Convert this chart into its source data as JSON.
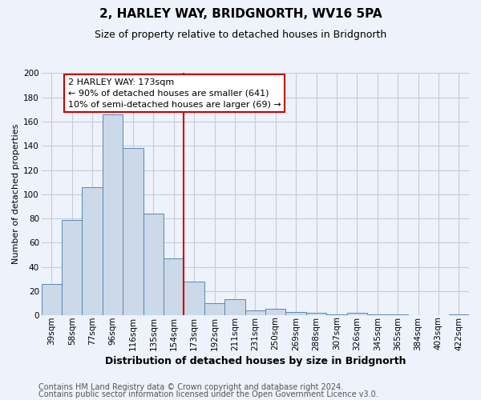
{
  "title": "2, HARLEY WAY, BRIDGNORTH, WV16 5PA",
  "subtitle": "Size of property relative to detached houses in Bridgnorth",
  "xlabel": "Distribution of detached houses by size in Bridgnorth",
  "ylabel": "Number of detached properties",
  "footer_line1": "Contains HM Land Registry data © Crown copyright and database right 2024.",
  "footer_line2": "Contains public sector information licensed under the Open Government Licence v3.0.",
  "bin_labels": [
    "39sqm",
    "58sqm",
    "77sqm",
    "96sqm",
    "116sqm",
    "135sqm",
    "154sqm",
    "173sqm",
    "192sqm",
    "211sqm",
    "231sqm",
    "250sqm",
    "269sqm",
    "288sqm",
    "307sqm",
    "326sqm",
    "345sqm",
    "365sqm",
    "384sqm",
    "403sqm",
    "422sqm"
  ],
  "bar_values": [
    26,
    79,
    106,
    166,
    138,
    84,
    47,
    28,
    10,
    13,
    4,
    5,
    3,
    2,
    1,
    2,
    1,
    1,
    0,
    0,
    1
  ],
  "bar_color": "#ccd9e8",
  "bar_edge_color": "#5588bb",
  "reference_value": "173sqm",
  "reference_line_color": "#cc0000",
  "ylim": [
    0,
    200
  ],
  "yticks": [
    0,
    20,
    40,
    60,
    80,
    100,
    120,
    140,
    160,
    180,
    200
  ],
  "annotation_title": "2 HARLEY WAY: 173sqm",
  "annotation_line1": "← 90% of detached houses are smaller (641)",
  "annotation_line2": "10% of semi-detached houses are larger (69) →",
  "annotation_box_facecolor": "#ffffff",
  "annotation_box_edgecolor": "#cc0000",
  "bg_color": "#eef2fa",
  "plot_bg_color": "#eef2fa",
  "grid_color": "#c5cdd8",
  "title_fontsize": 11,
  "subtitle_fontsize": 9,
  "xlabel_fontsize": 9,
  "ylabel_fontsize": 8,
  "tick_fontsize": 7.5,
  "footer_fontsize": 7
}
